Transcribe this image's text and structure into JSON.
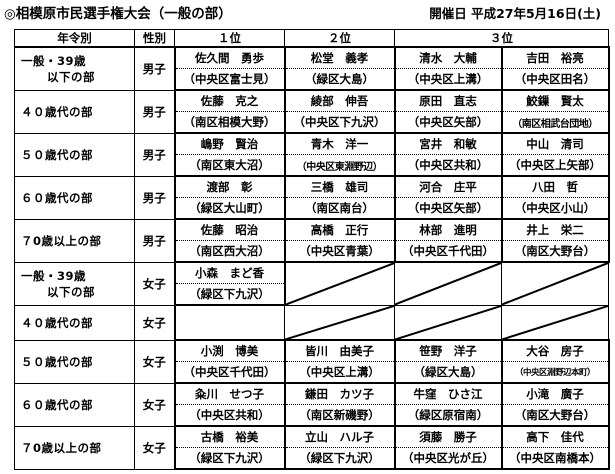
{
  "header": {
    "title": "◎相模原市民選手権大会（一般の部）",
    "date": "開催日 平成27年5月16日(土)"
  },
  "columns": {
    "category": "年令別",
    "sex": "性別",
    "first": "１位",
    "second": "２位",
    "third": "３位"
  },
  "divisions": [
    {
      "category": [
        "一般・39歳",
        "以下の部"
      ],
      "sex": "男子",
      "first": {
        "name": "佐久間　勇歩",
        "area": "（中央区富士見）"
      },
      "second": {
        "name": "松堂　義孝",
        "area": "（緑区大島）"
      },
      "third": [
        {
          "name": "清水　大輔",
          "area": "（中央区上溝）"
        },
        {
          "name": "吉田　裕亮",
          "area": "（中央区田名）"
        }
      ]
    },
    {
      "category": [
        "４０歳代の部"
      ],
      "sex": "男子",
      "first": {
        "name": "佐藤　克之",
        "area": "（南区相模大野）"
      },
      "second": {
        "name": "綾部　伸吾",
        "area": "（中央区下九沢）"
      },
      "third": [
        {
          "name": "原田　直志",
          "area": "（中央区矢部）"
        },
        {
          "name": "鮫鏁　賢太",
          "area": "（南区相武台団地）"
        }
      ]
    },
    {
      "category": [
        "５０歳代の部"
      ],
      "sex": "男子",
      "first": {
        "name": "嶋野　賢治",
        "area": "（南区東大沼）"
      },
      "second": {
        "name": "青木　洋一",
        "area": "（中央区東淵野辺）"
      },
      "third": [
        {
          "name": "宮井　和敏",
          "area": "（中央区共和）"
        },
        {
          "name": "中山　清司",
          "area": "（中央区上矢部）"
        }
      ]
    },
    {
      "category": [
        "６０歳代の部"
      ],
      "sex": "男子",
      "first": {
        "name": "渡部　彰",
        "area": "（緑区大山町）"
      },
      "second": {
        "name": "三橋　雄司",
        "area": "（南区南台）"
      },
      "third": [
        {
          "name": "河合　庄平",
          "area": "（中央区矢部）"
        },
        {
          "name": "八田　哲",
          "area": "（中央区小山）"
        }
      ]
    },
    {
      "category": [
        "７0歳以上の部"
      ],
      "sex": "男子",
      "first": {
        "name": "佐藤　昭治",
        "area": "（南区西大沼）"
      },
      "second": {
        "name": "高橋　正行",
        "area": "（中央区青葉）"
      },
      "third": [
        {
          "name": "林部　進明",
          "area": "（中央区千代田）"
        },
        {
          "name": "井上　栄二",
          "area": "（南区大野台）"
        }
      ]
    },
    {
      "category": [
        "一般・39歳",
        "以下の部"
      ],
      "sex": "女子",
      "first": {
        "name": "小森　まど香",
        "area": "（緑区下九沢）"
      },
      "second": null,
      "third": null
    },
    {
      "category": [
        "４０歳代の部"
      ],
      "sex": "女子",
      "first": null,
      "second": null,
      "third": null
    },
    {
      "category": [
        "５０歳代の部"
      ],
      "sex": "女子",
      "first": {
        "name": "小渕　博美",
        "area": "（中央区千代田）"
      },
      "second": {
        "name": "皆川　由美子",
        "area": "（中央区上溝）"
      },
      "third": [
        {
          "name": "笹野　洋子",
          "area": "（緑区大島）"
        },
        {
          "name": "大谷　房子",
          "area": "（中央区淵野辺本町）"
        }
      ]
    },
    {
      "category": [
        "６０歳代の部"
      ],
      "sex": "女子",
      "first": {
        "name": "粂川　せつ子",
        "area": "（中央区共和）"
      },
      "second": {
        "name": "鎌田　カツ子",
        "area": "（南区新磯野）"
      },
      "third": [
        {
          "name": "牛窪　ひさ江",
          "area": "（緑区原宿南）"
        },
        {
          "name": "小滝　廣子",
          "area": "（南区大野台）"
        }
      ]
    },
    {
      "category": [
        "７0歳以上の部"
      ],
      "sex": "女子",
      "first": {
        "name": "古橋　裕美",
        "area": "（緑区下九沢）"
      },
      "second": {
        "name": "立山　ハル子",
        "area": "（緑区下九沢）"
      },
      "third": [
        {
          "name": "須藤　勝子",
          "area": "（中央区光が丘）"
        },
        {
          "name": "高下　佳代",
          "area": "（中央区南橋本）"
        }
      ]
    }
  ]
}
